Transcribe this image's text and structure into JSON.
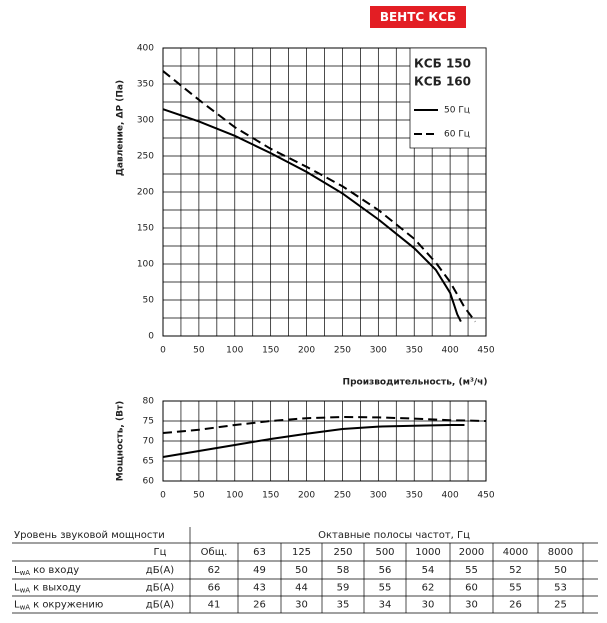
{
  "header": "ВЕНТС КСБ",
  "chart_data": [
    {
      "type": "line",
      "ylabel": "Давление, ΔP (Па)",
      "xlabel": "Производительность, (м³/ч)",
      "xlim": [
        0,
        450
      ],
      "ylim": [
        0,
        400
      ],
      "xticks": [
        0,
        50,
        100,
        150,
        200,
        250,
        300,
        350,
        400,
        450
      ],
      "yticks": [
        0,
        50,
        100,
        150,
        200,
        250,
        300,
        350,
        400
      ],
      "grid": true,
      "legend": "upper right",
      "legend_title": [
        "КСБ 150",
        "КСБ 160"
      ],
      "series": [
        {
          "name": "50 Гц",
          "color": "#000000",
          "dash": false,
          "x": [
            0,
            50,
            100,
            150,
            200,
            250,
            300,
            350,
            380,
            400,
            410,
            415
          ],
          "values": [
            315,
            298,
            278,
            254,
            228,
            198,
            162,
            122,
            92,
            60,
            30,
            20
          ]
        },
        {
          "name": "60 Гц",
          "color": "#000000",
          "dash": true,
          "x": [
            0,
            50,
            100,
            150,
            200,
            250,
            300,
            350,
            380,
            400,
            420,
            435
          ],
          "values": [
            368,
            328,
            290,
            260,
            235,
            208,
            175,
            135,
            102,
            75,
            40,
            20
          ]
        }
      ]
    },
    {
      "type": "line",
      "ylabel": "Мощность, (Вт)",
      "xlim": [
        0,
        450
      ],
      "ylim": [
        60,
        80
      ],
      "xticks": [
        0,
        50,
        100,
        150,
        200,
        250,
        300,
        350,
        400,
        450
      ],
      "yticks": [
        60,
        65,
        70,
        75,
        80
      ],
      "grid": true,
      "series": [
        {
          "color": "#000000",
          "dash": false,
          "x": [
            0,
            50,
            100,
            150,
            200,
            250,
            300,
            350,
            400,
            420
          ],
          "values": [
            66,
            67.5,
            69,
            70.5,
            71.8,
            73,
            73.6,
            73.8,
            74,
            74
          ]
        },
        {
          "color": "#000000",
          "dash": true,
          "x": [
            0,
            50,
            100,
            150,
            200,
            250,
            300,
            350,
            400,
            450
          ],
          "values": [
            72,
            72.8,
            74,
            75,
            75.7,
            76,
            75.9,
            75.6,
            75.2,
            75
          ]
        }
      ]
    }
  ],
  "table": {
    "title": "Уровень звуковой мощности",
    "bands_title": "Октавные полосы частот, Гц",
    "unit_header": "Гц",
    "columns": [
      "Общ.",
      "63",
      "125",
      "250",
      "500",
      "1000",
      "2000",
      "4000",
      "8000"
    ],
    "rows": [
      {
        "symbol": "L",
        "subscript": "wA",
        "label": "ко входу",
        "unit": "дБ(А)",
        "values": [
          62,
          49,
          50,
          58,
          56,
          54,
          55,
          52,
          50
        ]
      },
      {
        "symbol": "L",
        "subscript": "wA",
        "label": "к выходу",
        "unit": "дБ(А)",
        "values": [
          66,
          43,
          44,
          59,
          55,
          62,
          60,
          55,
          53
        ]
      },
      {
        "symbol": "L",
        "subscript": "wA",
        "label": "к окружению",
        "unit": "дБ(А)",
        "values": [
          41,
          26,
          30,
          35,
          34,
          30,
          30,
          26,
          25
        ]
      }
    ]
  }
}
